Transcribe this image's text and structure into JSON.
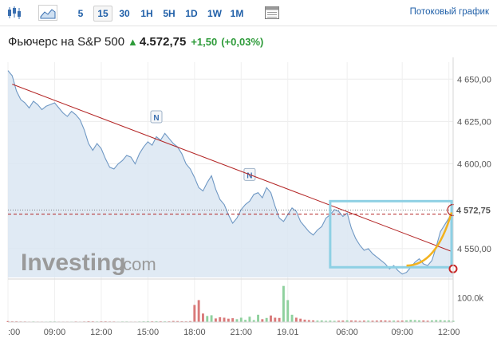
{
  "toolbar": {
    "timeframes": [
      "5",
      "15",
      "30",
      "1H",
      "5H",
      "1D",
      "1W",
      "1M"
    ],
    "active_timeframe": "15",
    "stream_link": "Потоковый график",
    "icons": [
      "candlestick-icon",
      "area-chart-icon",
      "table-icon"
    ]
  },
  "quote": {
    "name": "Фьючерс на S&P 500",
    "price": "4.572,75",
    "change": "+1,50",
    "change_pct": "(+0,03%)"
  },
  "colors": {
    "link": "#1f5fa8",
    "up": "#2e9b3a",
    "line": "#6f98c4",
    "area": "#dbe6f2",
    "trendline": "#b32424",
    "box": "#8ed0e4",
    "arrow": "#f2b21e",
    "vol_up": "#8fd19e",
    "vol_down": "#d97a7a"
  },
  "watermark": {
    "brand": "Investing",
    "suffix": ".com"
  },
  "chart_data": {
    "type": "area",
    "y_ticks": [
      "4 650,00",
      "4 625,00",
      "4 600,00",
      "4 550,00"
    ],
    "y_tick_values": [
      4650,
      4625,
      4600,
      4550
    ],
    "ylim": [
      4533,
      4660
    ],
    "volume_tick": "100.0k",
    "volume_tick_value": 100000,
    "volume_max": 160000,
    "x_ticks": [
      ":00",
      "09:00",
      "12:00",
      "15:00",
      "18:00",
      "21:00",
      "19.01",
      "06:00",
      "09:00",
      "12:00"
    ],
    "x_tick_index": [
      0,
      11,
      22,
      33,
      44,
      55,
      66,
      80,
      93,
      104
    ],
    "current_price": 4572.75,
    "current_price_label": "4 572,75",
    "reference_price": 4571.25,
    "news_markers": [
      {
        "label": "N",
        "index": 35,
        "price": 4620
      },
      {
        "label": "N",
        "index": 57,
        "price": 4586
      }
    ],
    "close": [
      4655,
      4652,
      4643,
      4638,
      4636,
      4633,
      4637,
      4635,
      4632,
      4634,
      4635,
      4636,
      4633,
      4630,
      4628,
      4631,
      4629,
      4626,
      4620,
      4612,
      4608,
      4612,
      4609,
      4603,
      4598,
      4597,
      4600,
      4602,
      4605,
      4604,
      4600,
      4606,
      4610,
      4613,
      4611,
      4616,
      4614,
      4618,
      4615,
      4612,
      4610,
      4606,
      4600,
      4597,
      4592,
      4586,
      4584,
      4589,
      4593,
      4585,
      4579,
      4576,
      4570,
      4565,
      4568,
      4573,
      4576,
      4578,
      4582,
      4583,
      4580,
      4586,
      4583,
      4575,
      4568,
      4566,
      4570,
      4574,
      4572,
      4566,
      4563,
      4560,
      4558,
      4561,
      4563,
      4568,
      4570,
      4573,
      4572,
      4569,
      4571,
      4562,
      4556,
      4552,
      4549,
      4550,
      4547,
      4545,
      4543,
      4541,
      4538,
      4540,
      4537,
      4535,
      4536,
      4539,
      4542,
      4544,
      4541,
      4540,
      4543,
      4551,
      4560,
      4564,
      4568,
      4572.75
    ],
    "volume": [
      4000,
      3000,
      3000,
      2500,
      2500,
      2000,
      2500,
      2000,
      2000,
      2000,
      2500,
      2500,
      2000,
      2000,
      2000,
      2000,
      2500,
      2000,
      2500,
      3500,
      3000,
      2500,
      3000,
      3000,
      2500,
      2500,
      2000,
      2500,
      2500,
      2000,
      2000,
      2500,
      3000,
      3500,
      3000,
      3500,
      3000,
      3000,
      3000,
      4500,
      4000,
      3500,
      3000,
      4000,
      70000,
      90000,
      35000,
      25000,
      28000,
      15000,
      20000,
      18000,
      14000,
      16000,
      12000,
      18000,
      9000,
      22000,
      8000,
      30000,
      12000,
      17000,
      27000,
      18000,
      17000,
      148000,
      90000,
      30000,
      18000,
      14000,
      10000,
      8000,
      7000,
      6000,
      6500,
      5000,
      6000,
      5000,
      5500,
      6000,
      7000,
      6500,
      6000,
      5000,
      6000,
      6000,
      5500,
      6000,
      7000,
      6500,
      5500,
      6000,
      5500,
      6000,
      7000,
      9000,
      8000,
      7000,
      6500,
      5500,
      7000,
      8000,
      8000,
      6500,
      7000,
      6000
    ],
    "direction": [
      "d",
      "d",
      "d",
      "d",
      "d",
      "d",
      "u",
      "d",
      "d",
      "u",
      "u",
      "u",
      "d",
      "d",
      "d",
      "u",
      "d",
      "d",
      "d",
      "d",
      "d",
      "u",
      "d",
      "d",
      "d",
      "d",
      "u",
      "u",
      "u",
      "d",
      "d",
      "u",
      "u",
      "u",
      "d",
      "u",
      "d",
      "u",
      "d",
      "d",
      "d",
      "d",
      "d",
      "d",
      "d",
      "d",
      "d",
      "u",
      "u",
      "d",
      "d",
      "d",
      "d",
      "d",
      "u",
      "u",
      "u",
      "u",
      "u",
      "u",
      "d",
      "u",
      "d",
      "d",
      "d",
      "u",
      "u",
      "u",
      "d",
      "d",
      "d",
      "d",
      "d",
      "u",
      "u",
      "u",
      "u",
      "u",
      "d",
      "d",
      "u",
      "d",
      "d",
      "d",
      "d",
      "u",
      "d",
      "d",
      "d",
      "d",
      "d",
      "u",
      "d",
      "d",
      "u",
      "u",
      "u",
      "u",
      "d",
      "d",
      "u",
      "u",
      "u",
      "u",
      "u",
      "u"
    ]
  }
}
